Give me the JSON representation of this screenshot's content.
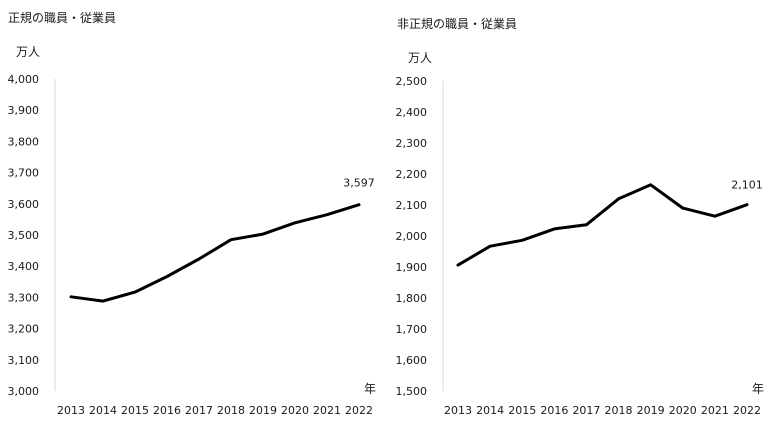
{
  "colors": {
    "line": "#000000",
    "axis": "#d9d9d9",
    "text": "#1a1a1a"
  },
  "chart_data": [
    {
      "type": "line",
      "title": "正規の職員・従業員",
      "unit_label": "万人",
      "xlabel": "年",
      "ylabel": "",
      "ylim": [
        3000,
        4000
      ],
      "ytick_step": 100,
      "ytick_labels": [
        "3,000",
        "3,100",
        "3,200",
        "3,300",
        "3,400",
        "3,500",
        "3,600",
        "3,700",
        "3,800",
        "3,900",
        "4,000"
      ],
      "grid": false,
      "x": [
        "2013",
        "2014",
        "2015",
        "2016",
        "2017",
        "2018",
        "2019",
        "2020",
        "2021",
        "2022"
      ],
      "series": [
        {
          "values": [
            3302,
            3288,
            3317,
            3367,
            3423,
            3485,
            3503,
            3539,
            3565,
            3597
          ]
        }
      ],
      "annotation": {
        "text": "3,597",
        "index": 9
      }
    },
    {
      "type": "line",
      "title": "非正規の職員・従業員",
      "unit_label": "万人",
      "xlabel": "年",
      "ylabel": "",
      "ylim": [
        1500,
        2500
      ],
      "ytick_step": 100,
      "ytick_labels": [
        "1,500",
        "1,600",
        "1,700",
        "1,800",
        "1,900",
        "2,000",
        "2,100",
        "2,200",
        "2,300",
        "2,400",
        "2,500"
      ],
      "grid": false,
      "x": [
        "2013",
        "2014",
        "2015",
        "2016",
        "2017",
        "2018",
        "2019",
        "2020",
        "2021",
        "2022"
      ],
      "series": [
        {
          "values": [
            1906,
            1967,
            1986,
            2023,
            2036,
            2120,
            2165,
            2090,
            2064,
            2101
          ]
        }
      ],
      "annotation": {
        "text": "2,101",
        "index": 9
      }
    }
  ]
}
